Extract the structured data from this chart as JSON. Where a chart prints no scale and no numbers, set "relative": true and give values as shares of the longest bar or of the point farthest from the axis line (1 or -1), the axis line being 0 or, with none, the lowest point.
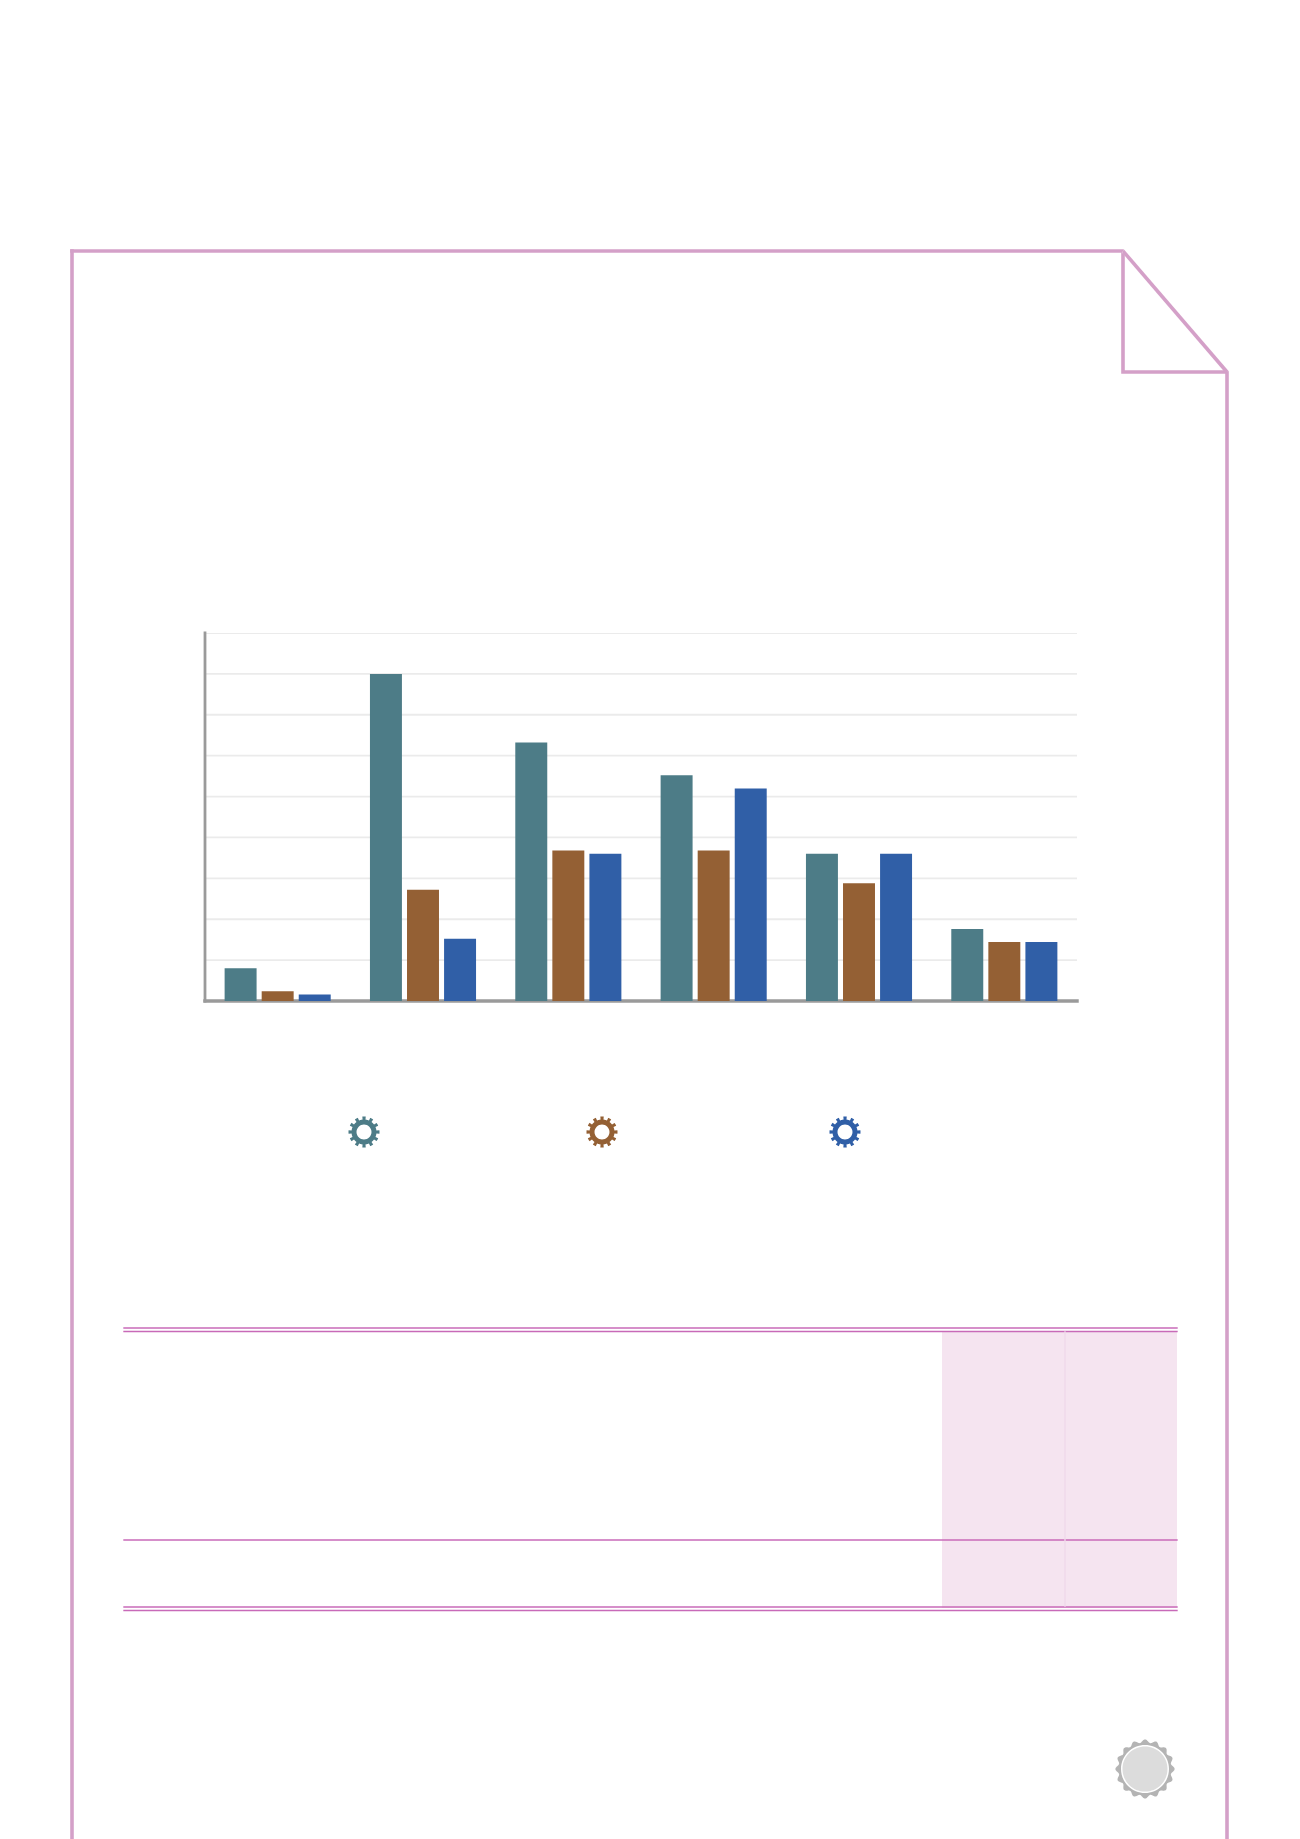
{
  "chart_data": {
    "type": "bar",
    "relative": true,
    "categories": [
      null,
      null,
      null,
      null,
      null,
      null
    ],
    "series": [
      {
        "color": "#4d7c87",
        "values": [
          0.1,
          1,
          0.79,
          0.69,
          0.45,
          0.22
        ]
      },
      {
        "color": "#946034",
        "values": [
          0.03,
          0.34,
          0.46,
          0.46,
          0.36,
          0.18
        ]
      },
      {
        "color": "#305fa7",
        "values": [
          0.02,
          0.19,
          0.45,
          0.65,
          0.45,
          0.18
        ]
      }
    ],
    "grid": "y"
  }
}
